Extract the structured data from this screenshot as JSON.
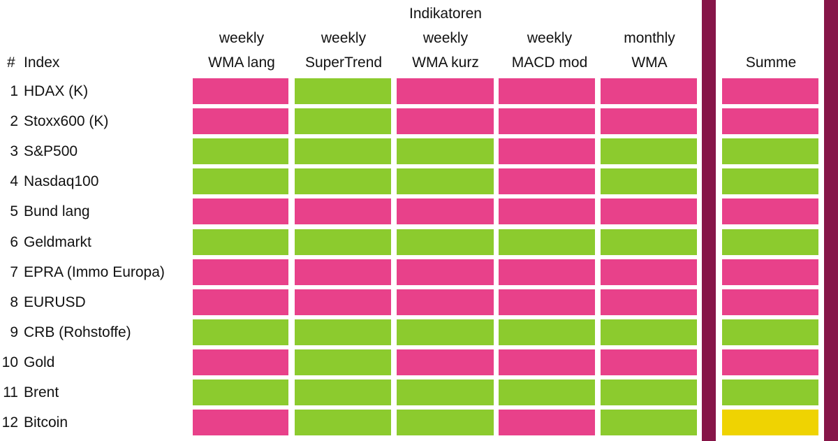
{
  "header": {
    "group_title": "Indikatoren",
    "hash_label": "#",
    "index_label": "Index",
    "columns": [
      {
        "line1": "weekly",
        "line2": "WMA lang"
      },
      {
        "line1": "weekly",
        "line2": "SuperTrend"
      },
      {
        "line1": "weekly",
        "line2": "WMA kurz"
      },
      {
        "line1": "weekly",
        "line2": "MACD mod"
      },
      {
        "line1": "monthly",
        "line2": "WMA"
      }
    ],
    "sum_label": "Summe"
  },
  "colors": {
    "negative": "#E8418A",
    "positive": "#8CCB2E",
    "neutral": "#EFD302",
    "divider": "#861548"
  },
  "chart_data": {
    "type": "table",
    "columns": [
      "WMA lang",
      "SuperTrend",
      "WMA kurz",
      "MACD mod",
      "WMA",
      "Summe"
    ],
    "rows": [
      {
        "num": "1",
        "name": "HDAX (K)",
        "signals": [
          "negative",
          "positive",
          "negative",
          "negative",
          "negative"
        ],
        "sum": "negative"
      },
      {
        "num": "2",
        "name": "Stoxx600 (K)",
        "signals": [
          "negative",
          "positive",
          "negative",
          "negative",
          "negative"
        ],
        "sum": "negative"
      },
      {
        "num": "3",
        "name": "S&P500",
        "signals": [
          "positive",
          "positive",
          "positive",
          "negative",
          "positive"
        ],
        "sum": "positive"
      },
      {
        "num": "4",
        "name": "Nasdaq100",
        "signals": [
          "positive",
          "positive",
          "positive",
          "negative",
          "positive"
        ],
        "sum": "positive"
      },
      {
        "num": "5",
        "name": "Bund lang",
        "signals": [
          "negative",
          "negative",
          "negative",
          "negative",
          "negative"
        ],
        "sum": "negative"
      },
      {
        "num": "6",
        "name": "Geldmarkt",
        "signals": [
          "positive",
          "positive",
          "positive",
          "positive",
          "positive"
        ],
        "sum": "positive"
      },
      {
        "num": "7",
        "name": "EPRA (Immo Europa)",
        "signals": [
          "negative",
          "negative",
          "negative",
          "negative",
          "negative"
        ],
        "sum": "negative"
      },
      {
        "num": "8",
        "name": "EURUSD",
        "signals": [
          "negative",
          "negative",
          "negative",
          "negative",
          "negative"
        ],
        "sum": "negative"
      },
      {
        "num": "9",
        "name": "CRB (Rohstoffe)",
        "signals": [
          "positive",
          "positive",
          "positive",
          "positive",
          "positive"
        ],
        "sum": "positive"
      },
      {
        "num": "10",
        "name": "Gold",
        "signals": [
          "negative",
          "positive",
          "negative",
          "negative",
          "negative"
        ],
        "sum": "negative"
      },
      {
        "num": "11",
        "name": "Brent",
        "signals": [
          "positive",
          "positive",
          "positive",
          "positive",
          "positive"
        ],
        "sum": "positive"
      },
      {
        "num": "12",
        "name": "Bitcoin",
        "signals": [
          "negative",
          "positive",
          "positive",
          "negative",
          "positive"
        ],
        "sum": "neutral"
      }
    ]
  }
}
